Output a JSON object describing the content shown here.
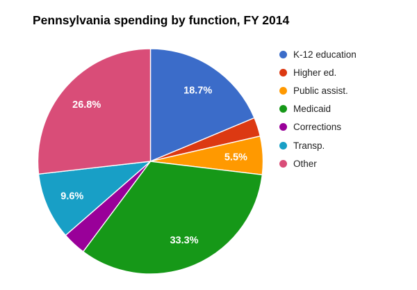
{
  "chart_data": {
    "type": "pie",
    "title": "Pennsylvania spending by function, FY 2014",
    "legend_position": "right",
    "start_angle_deg": 0,
    "direction": "clockwise",
    "slices": [
      {
        "label": "K-12 education",
        "value": 18.7,
        "display": "18.7%",
        "color": "#3B6CC9"
      },
      {
        "label": "Higher ed.",
        "value": 2.7,
        "display": "",
        "color": "#DC3912"
      },
      {
        "label": "Public assist.",
        "value": 5.5,
        "display": "5.5%",
        "color": "#FF9900"
      },
      {
        "label": "Medicaid",
        "value": 33.3,
        "display": "33.3%",
        "color": "#169818"
      },
      {
        "label": "Corrections",
        "value": 3.4,
        "display": "",
        "color": "#990099"
      },
      {
        "label": "Transp.",
        "value": 9.6,
        "display": "9.6%",
        "color": "#189FC6"
      },
      {
        "label": "Other",
        "value": 26.8,
        "display": "26.8%",
        "color": "#D94D78"
      }
    ]
  },
  "colors": {
    "background": "#FFFFFF",
    "title_text": "#000000",
    "legend_text": "#212121",
    "slice_label_text": "#FFFFFF",
    "slice_separator": "#FFFFFF"
  }
}
